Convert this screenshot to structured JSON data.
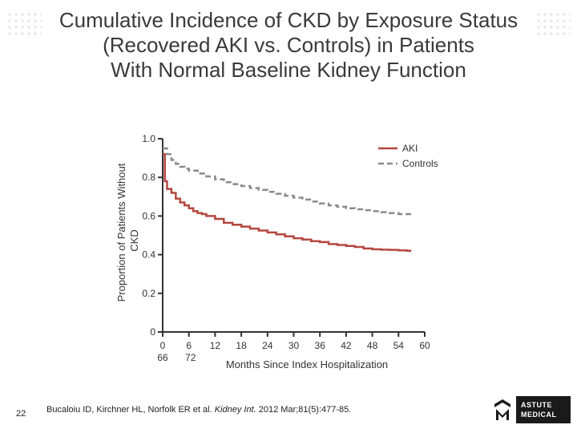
{
  "slide": {
    "title_lines": [
      "Cumulative Incidence of CKD by Exposure Status",
      "(Recovered AKI vs. Controls) in Patients",
      "With Normal Baseline Kidney Function"
    ],
    "page_number": "22",
    "citation_authors": "Bucaloiu ID, Kirchner HL, Norfolk ER et al. ",
    "citation_journal": "Kidney Int.",
    "citation_rest": " 2012 Mar;81(5):477-85.",
    "logo_line1": "ASTUTE",
    "logo_line2": "MEDICAL",
    "logo_mark_icon": "astute-medical-logo-mark",
    "colors": {
      "aki": "#b5473f",
      "controls": "#8a8a8a",
      "axis": "#333333"
    }
  },
  "chart_data": {
    "type": "line",
    "ylabel_line1": "Proportion of Patients Without",
    "ylabel_line2": "CKD",
    "xlabel": "Months Since Index Hospitalization",
    "xlim": [
      0,
      60
    ],
    "ylim": [
      0,
      1.0
    ],
    "y_ticks": [
      "0",
      "0.2",
      "0.4",
      "0.6",
      "0.8",
      "1.0"
    ],
    "y_tick_values": [
      0,
      0.2,
      0.4,
      0.6,
      0.8,
      1.0
    ],
    "x_ticks": [
      "0",
      "6",
      "12",
      "18",
      "24",
      "30",
      "36",
      "42",
      "48",
      "54",
      "60"
    ],
    "x_tick_values": [
      0,
      6,
      12,
      18,
      24,
      30,
      36,
      42,
      48,
      54,
      60
    ],
    "x_ticks_row2": [
      "66",
      "72"
    ],
    "legend_position": "top-right",
    "series": [
      {
        "name": "AKI",
        "style": "solid",
        "x": [
          0,
          0.5,
          1,
          2,
          3,
          4,
          5,
          6,
          7,
          8,
          9,
          10,
          12,
          14,
          16,
          18,
          20,
          22,
          24,
          26,
          28,
          30,
          32,
          34,
          36,
          38,
          40,
          42,
          44,
          46,
          48,
          50,
          52,
          54,
          56
        ],
        "y": [
          0.92,
          0.78,
          0.74,
          0.72,
          0.69,
          0.67,
          0.655,
          0.64,
          0.625,
          0.615,
          0.61,
          0.6,
          0.585,
          0.565,
          0.555,
          0.545,
          0.535,
          0.525,
          0.515,
          0.505,
          0.495,
          0.485,
          0.478,
          0.47,
          0.465,
          0.455,
          0.45,
          0.445,
          0.44,
          0.432,
          0.428,
          0.426,
          0.425,
          0.422,
          0.42
        ]
      },
      {
        "name": "Controls",
        "style": "dashed",
        "x": [
          0,
          1,
          2,
          3,
          4,
          5,
          6,
          8,
          10,
          12,
          14,
          16,
          18,
          20,
          22,
          24,
          26,
          28,
          30,
          32,
          34,
          36,
          38,
          40,
          42,
          44,
          46,
          48,
          50,
          52,
          54,
          56
        ],
        "y": [
          0.95,
          0.92,
          0.89,
          0.87,
          0.855,
          0.845,
          0.835,
          0.82,
          0.805,
          0.79,
          0.775,
          0.765,
          0.755,
          0.745,
          0.735,
          0.725,
          0.715,
          0.705,
          0.695,
          0.685,
          0.675,
          0.665,
          0.655,
          0.648,
          0.64,
          0.635,
          0.63,
          0.625,
          0.62,
          0.615,
          0.61,
          0.61
        ]
      }
    ]
  }
}
